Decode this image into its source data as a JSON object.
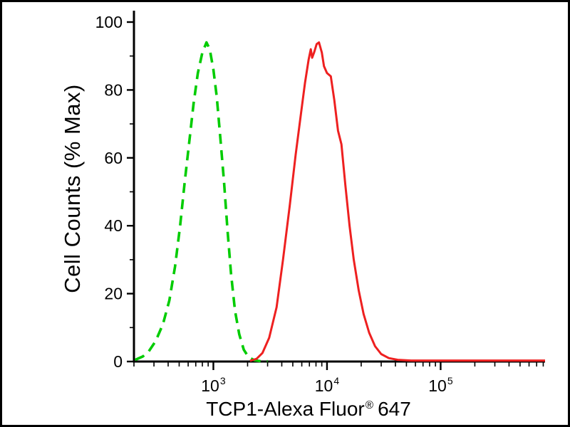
{
  "figure": {
    "ylabel": "Cell Counts (% Max)",
    "xlabel_main": "TCP1-Alexa Fluor",
    "xlabel_reg": "®",
    "xlabel_suffix": "647"
  },
  "chart_data": {
    "type": "line",
    "title": "",
    "xlabel": "TCP1-Alexa Fluor® 647",
    "ylabel": "Cell Counts (% Max)",
    "x_scale": "log",
    "xlim": [
      200,
      830000
    ],
    "ylim": [
      0,
      100
    ],
    "grid": false,
    "legend": "none",
    "axis_color": "#000000",
    "x_major_ticks": [
      {
        "value": 1000,
        "base": "10",
        "exp": "3"
      },
      {
        "value": 10000,
        "base": "10",
        "exp": "4"
      },
      {
        "value": 100000,
        "base": "10",
        "exp": "5"
      }
    ],
    "y_major_ticks": [
      0,
      20,
      40,
      60,
      80,
      100
    ],
    "y_minor_ticks": [
      10,
      30,
      50,
      70,
      90
    ],
    "series": [
      {
        "id": "green-dashed",
        "name": "green dashed histogram (left peak ~9×10², ~94% max)",
        "color": "#00cc00",
        "style": "dashed",
        "width": 3.6,
        "points": [
          [
            205,
            0.5
          ],
          [
            240,
            1.5
          ],
          [
            270,
            3
          ],
          [
            310,
            6
          ],
          [
            360,
            11
          ],
          [
            410,
            18
          ],
          [
            460,
            28
          ],
          [
            510,
            40
          ],
          [
            560,
            53
          ],
          [
            615,
            65
          ],
          [
            670,
            76
          ],
          [
            730,
            85
          ],
          [
            800,
            91
          ],
          [
            870,
            94
          ],
          [
            930,
            92
          ],
          [
            1000,
            86
          ],
          [
            1070,
            78
          ],
          [
            1150,
            66
          ],
          [
            1240,
            53
          ],
          [
            1330,
            39
          ],
          [
            1430,
            26
          ],
          [
            1550,
            15
          ],
          [
            1690,
            8
          ],
          [
            1850,
            3.5
          ],
          [
            2050,
            1.2
          ],
          [
            2300,
            0.4
          ],
          [
            2600,
            0.1
          ],
          [
            3000,
            0.1
          ]
        ]
      },
      {
        "id": "red-solid",
        "name": "red solid histogram (right peak ~8×10³, ~94% max)",
        "color": "#ee2020",
        "style": "solid",
        "width": 3.0,
        "points": [
          [
            2100,
            0.2
          ],
          [
            2400,
            0.8
          ],
          [
            2700,
            2.5
          ],
          [
            3100,
            7
          ],
          [
            3600,
            16
          ],
          [
            4100,
            30
          ],
          [
            4700,
            46
          ],
          [
            5300,
            61
          ],
          [
            5900,
            73
          ],
          [
            6400,
            82
          ],
          [
            6900,
            89
          ],
          [
            7200,
            92
          ],
          [
            7400,
            89.5
          ],
          [
            7700,
            91
          ],
          [
            8100,
            93.5
          ],
          [
            8500,
            94
          ],
          [
            9000,
            91
          ],
          [
            9400,
            87
          ],
          [
            10000,
            85
          ],
          [
            10800,
            84
          ],
          [
            11600,
            77
          ],
          [
            12500,
            68
          ],
          [
            13400,
            64
          ],
          [
            14500,
            52
          ],
          [
            15800,
            40
          ],
          [
            17200,
            30
          ],
          [
            19000,
            21
          ],
          [
            21000,
            14
          ],
          [
            23500,
            8.5
          ],
          [
            26500,
            4.5
          ],
          [
            30000,
            2.2
          ],
          [
            35000,
            1
          ],
          [
            42000,
            0.5
          ],
          [
            55000,
            0.3
          ],
          [
            830000,
            0.3
          ]
        ]
      }
    ]
  }
}
